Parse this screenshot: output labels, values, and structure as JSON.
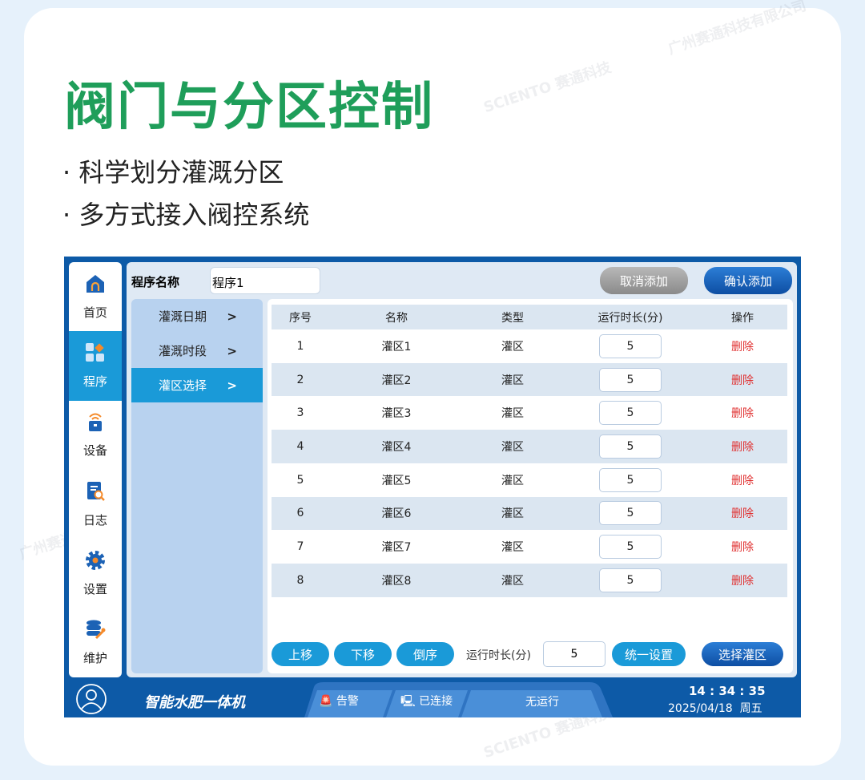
{
  "headline": {
    "title": "阀门与分区控制",
    "bullets": [
      "科学划分灌溉分区",
      "多方式接入阀控系统"
    ]
  },
  "watermark": {
    "company": "广州赛通科技有限公司",
    "brand": "SCIENTO",
    "brand_cn": "赛通科技"
  },
  "sidebar": {
    "items": [
      {
        "label": "首页",
        "icon": "home-icon"
      },
      {
        "label": "程序",
        "icon": "program-grid-icon",
        "active": true
      },
      {
        "label": "设备",
        "icon": "device-wifi-icon"
      },
      {
        "label": "日志",
        "icon": "log-search-icon"
      },
      {
        "label": "设置",
        "icon": "gear-icon"
      },
      {
        "label": "维护",
        "icon": "database-wrench-icon"
      }
    ]
  },
  "toolbar": {
    "program_name_label": "程序名称",
    "program_name_value": "程序1",
    "cancel_label": "取消添加",
    "confirm_label": "确认添加"
  },
  "menu": {
    "items": [
      {
        "label": "灌溉日期",
        "arrow": ">"
      },
      {
        "label": "灌溉时段",
        "arrow": ">"
      },
      {
        "label": "灌区选择",
        "arrow": ">",
        "active": true
      }
    ]
  },
  "table": {
    "headers": [
      "序号",
      "名称",
      "类型",
      "运行时长(分)",
      "操作"
    ],
    "rows": [
      {
        "no": "1",
        "name": "灌区1",
        "type": "灌区",
        "duration": "5",
        "action": "删除"
      },
      {
        "no": "2",
        "name": "灌区2",
        "type": "灌区",
        "duration": "5",
        "action": "删除"
      },
      {
        "no": "3",
        "name": "灌区3",
        "type": "灌区",
        "duration": "5",
        "action": "删除"
      },
      {
        "no": "4",
        "name": "灌区4",
        "type": "灌区",
        "duration": "5",
        "action": "删除"
      },
      {
        "no": "5",
        "name": "灌区5",
        "type": "灌区",
        "duration": "5",
        "action": "删除"
      },
      {
        "no": "6",
        "name": "灌区6",
        "type": "灌区",
        "duration": "5",
        "action": "删除"
      },
      {
        "no": "7",
        "name": "灌区7",
        "type": "灌区",
        "duration": "5",
        "action": "删除"
      },
      {
        "no": "8",
        "name": "灌区8",
        "type": "灌区",
        "duration": "5",
        "action": "删除"
      }
    ]
  },
  "bottom": {
    "up": "上移",
    "down": "下移",
    "reverse": "倒序",
    "duration_label": "运行时长(分)",
    "duration_value": "5",
    "apply_all": "统一设置",
    "select_zone": "选择灌区"
  },
  "status": {
    "app_name": "智能水肥一体机",
    "alarm": "告警",
    "connection": "已连接",
    "run_state": "无运行",
    "time": "14 : 34 : 35",
    "date": "2025/04/18  周五"
  },
  "colors": {
    "title_green": "#1f9e5a",
    "primary_blue": "#0d5aa7",
    "active_blue": "#1a9ad8",
    "delete_red": "#e03030"
  }
}
